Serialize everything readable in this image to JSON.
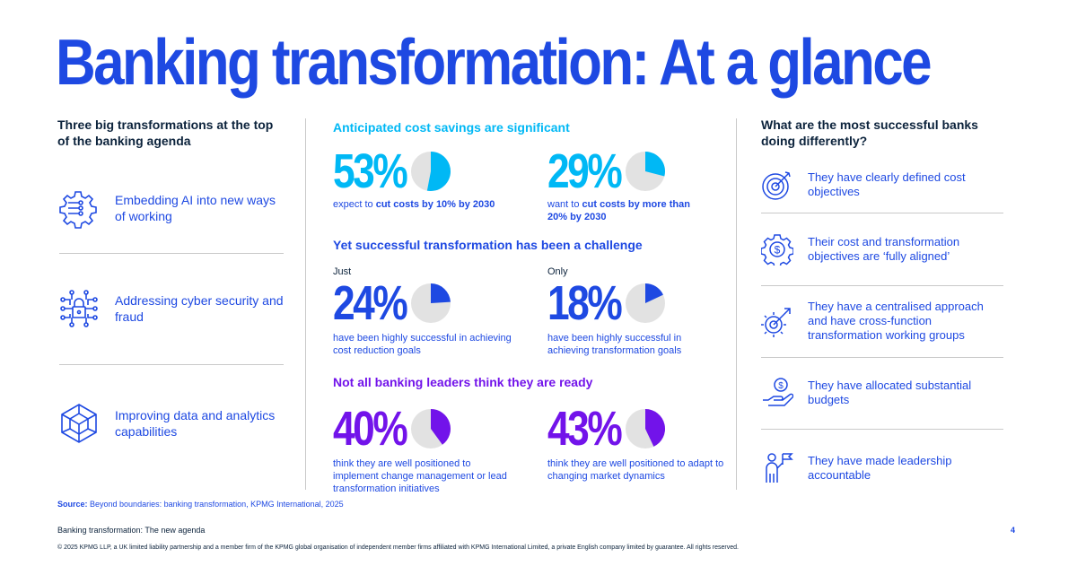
{
  "title": "Banking transformation: At a glance",
  "left": {
    "heading": "Three big transformations at the top of the banking agenda",
    "items": [
      {
        "label": "Embedding AI into new ways of working",
        "icon": "ai-gear-icon"
      },
      {
        "label": "Addressing cyber security and fraud",
        "icon": "cyber-lock-icon"
      },
      {
        "label": "Improving data and analytics capabilities",
        "icon": "data-cube-icon"
      }
    ]
  },
  "middle": {
    "sections": [
      {
        "heading": "Anticipated cost savings are significant",
        "color": "#00b8f5",
        "stats": [
          {
            "prefix": "",
            "value": "53%",
            "fraction": 0.53,
            "desc_pre": "expect to ",
            "desc_bold": "cut costs by 10% by 2030",
            "desc_post": ""
          },
          {
            "prefix": "",
            "value": "29%",
            "fraction": 0.29,
            "desc_pre": "want to ",
            "desc_bold": "cut costs by more than 20% by 2030",
            "desc_post": ""
          }
        ]
      },
      {
        "heading": "Yet successful transformation has been a challenge",
        "color": "#1e49e2",
        "stats": [
          {
            "prefix": "Just",
            "value": "24%",
            "fraction": 0.24,
            "desc_pre": "have been highly successful in achieving cost reduction goals",
            "desc_bold": "",
            "desc_post": ""
          },
          {
            "prefix": "Only",
            "value": "18%",
            "fraction": 0.18,
            "desc_pre": "have been highly successful in achieving transformation goals",
            "desc_bold": "",
            "desc_post": ""
          }
        ]
      },
      {
        "heading": "Not all banking leaders think they are ready",
        "color": "#7213ea",
        "stats": [
          {
            "prefix": "",
            "value": "40%",
            "fraction": 0.4,
            "desc_pre": "think they are well positioned to implement change management or lead transformation initiatives",
            "desc_bold": "",
            "desc_post": ""
          },
          {
            "prefix": "",
            "value": "43%",
            "fraction": 0.43,
            "desc_pre": "think they are well positioned to adapt to changing market dynamics",
            "desc_bold": "",
            "desc_post": ""
          }
        ]
      }
    ]
  },
  "right": {
    "heading": "What are the most successful banks doing differently?",
    "items": [
      {
        "label": "They have clearly defined cost objectives",
        "icon": "target-icon"
      },
      {
        "label": "Their cost and transformation objectives are ‘fully aligned’",
        "icon": "dollar-gear-icon"
      },
      {
        "label": "They have a centralised approach and have cross-function transformation working groups",
        "icon": "growth-gear-icon"
      },
      {
        "label": "They have allocated substantial budgets",
        "icon": "money-hand-icon"
      },
      {
        "label": "They have made leadership accountable",
        "icon": "leader-flag-icon"
      }
    ]
  },
  "footer": {
    "source_label": "Source:",
    "source_text": " Beyond boundaries: banking transformation, KPMG International, 2025",
    "doc_title": "Banking transformation: The new agenda",
    "page_number": "4",
    "copyright": "© 2025 KPMG LLP, a UK limited liability partnership and a member firm of the KPMG global organisation of independent member firms affiliated with KPMG International Limited, a private English company limited by guarantee. All rights reserved."
  },
  "colors": {
    "cobalt": "#1e49e2",
    "light_blue": "#00b8f5",
    "purple": "#7213ea",
    "dark": "#0c233c",
    "pie_bg": "#e2e2e2"
  }
}
